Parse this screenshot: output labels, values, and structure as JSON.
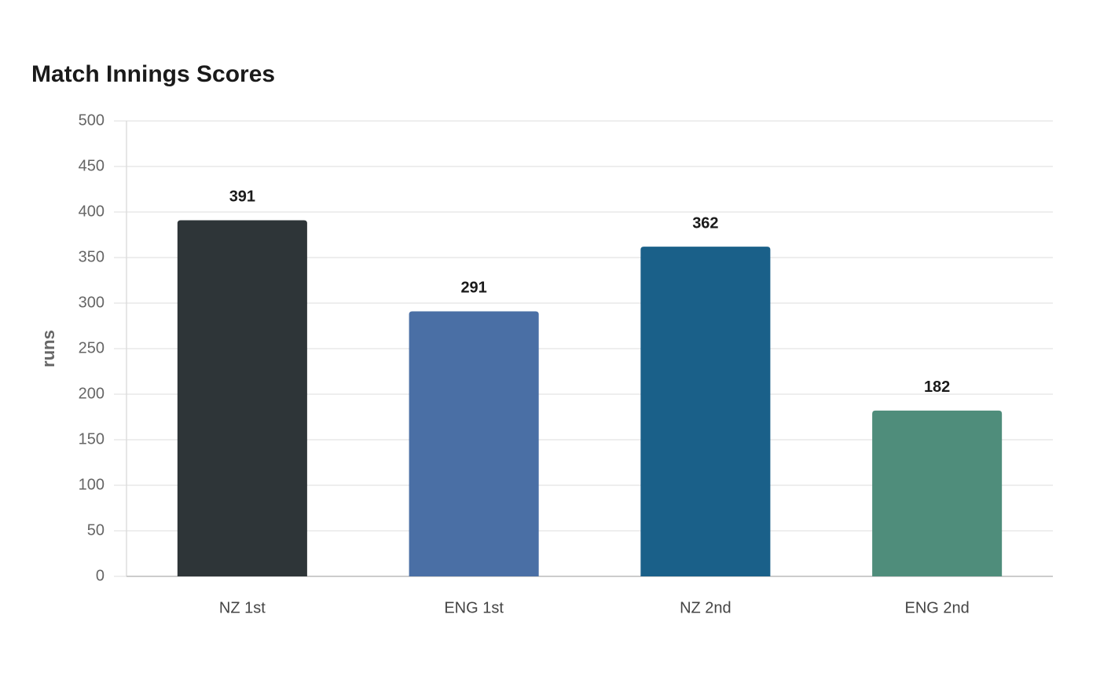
{
  "chart_data": {
    "type": "bar",
    "title": "Match Innings Scores",
    "y_label": "runs",
    "categories": [
      "NZ 1st",
      "ENG 1st",
      "NZ 2nd",
      "ENG 2nd"
    ],
    "values": [
      391,
      291,
      362,
      182
    ],
    "colors": [
      "#2e3538",
      "#4a6fa5",
      "#1a6089",
      "#4f8d7b"
    ],
    "ylim": [
      0,
      500
    ],
    "yticks": [
      0,
      50,
      100,
      150,
      200,
      250,
      300,
      350,
      400,
      450,
      500
    ],
    "grid": true
  }
}
